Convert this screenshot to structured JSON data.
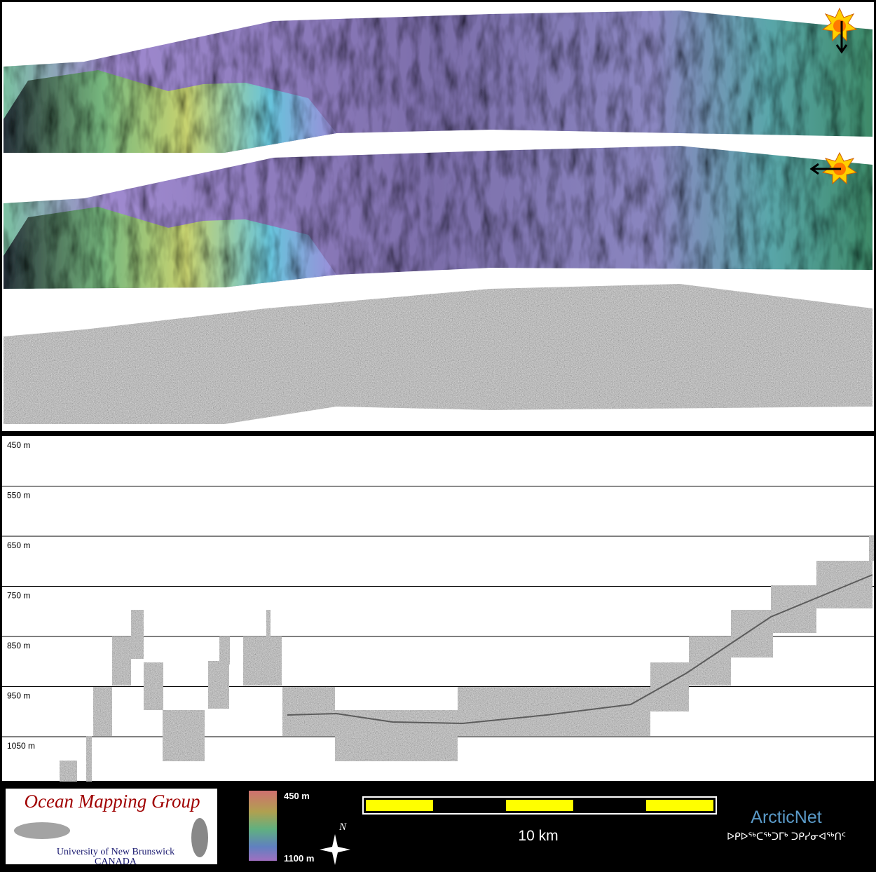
{
  "profile": {
    "depth_labels": [
      "450 m",
      "550 m",
      "650 m",
      "750 m",
      "850 m",
      "950 m",
      "1050 m"
    ]
  },
  "legend": {
    "organization": "Ocean Mapping Group",
    "university": "University of New Brunswick",
    "country": "CANADA",
    "colorbar_top": "450 m",
    "colorbar_bottom": "1100 m",
    "north": "N",
    "scale": "10 km",
    "partner": "ArcticNet",
    "partner_syllabics": "ᐅᑭᐅᖅᑕᖅᑐᒥᒃ ᑐᑭᓯᓂᐊᖅᑎᑦ"
  }
}
